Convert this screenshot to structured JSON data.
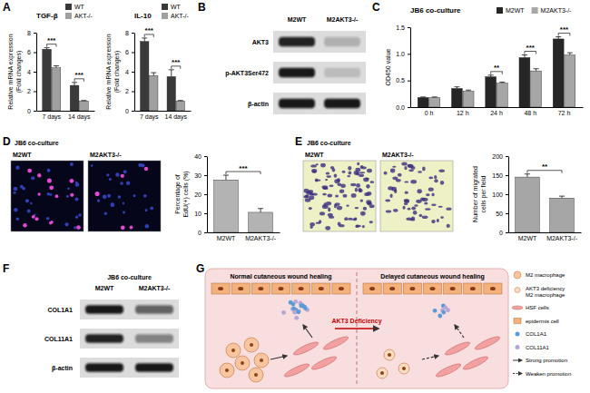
{
  "chart_data": [
    {
      "type": "bar",
      "title": "TGF-β",
      "ylabel": [
        "Relative mRNA expression",
        "(Fold changes)"
      ],
      "categories": [
        "7 days",
        "14 days"
      ],
      "series": [
        {
          "name": "WT",
          "color": "#3a3a3a",
          "values": [
            6.3,
            2.6
          ],
          "errors": [
            0.15,
            0.3
          ]
        },
        {
          "name": "AKT-/-",
          "color": "#a0a0a0",
          "values": [
            4.4,
            1.0
          ],
          "errors": [
            0.2,
            0.05
          ]
        }
      ],
      "ylim": [
        0,
        8
      ],
      "yticks": [
        0,
        2,
        4,
        6,
        8
      ],
      "annotations": [
        "***",
        "***"
      ],
      "legend": "top-right"
    },
    {
      "type": "bar",
      "title": "IL-10",
      "ylabel": [
        "Relative mRNA expression",
        "(Fold changes)"
      ],
      "categories": [
        "7 days",
        "14 days"
      ],
      "series": [
        {
          "name": "WT",
          "color": "#3a3a3a",
          "values": [
            7.1,
            3.5
          ],
          "errors": [
            0.35,
            0.7
          ]
        },
        {
          "name": "AKT-/-",
          "color": "#a0a0a0",
          "values": [
            3.6,
            1.0
          ],
          "errors": [
            0.3,
            0.05
          ]
        }
      ],
      "ylim": [
        0,
        8
      ],
      "yticks": [
        0,
        2,
        4,
        6,
        8
      ],
      "annotations": [
        "***",
        "***"
      ],
      "legend": "top-right"
    },
    {
      "type": "bar",
      "title": "JB6 co-culture",
      "ylabel": "OD450 value",
      "categories": [
        "0 h",
        "12 h",
        "24 h",
        "48 h",
        "72 h"
      ],
      "series": [
        {
          "name": "M2WT",
          "color": "#262626",
          "values": [
            0.18,
            0.35,
            0.57,
            0.93,
            1.28
          ],
          "errors": [
            0.01,
            0.03,
            0.03,
            0.05,
            0.04
          ]
        },
        {
          "name": "M2AKT3-/-",
          "color": "#a6a6a6",
          "values": [
            0.18,
            0.3,
            0.45,
            0.68,
            0.98
          ],
          "errors": [
            0.01,
            0.02,
            0.02,
            0.04,
            0.04
          ]
        }
      ],
      "ylim": [
        0,
        1.5
      ],
      "yticks": [
        {
          "value": 0,
          "label": "0.0"
        },
        0.5,
        {
          "value": 1,
          "label": "1.0"
        },
        1.5
      ],
      "annotations": [
        null,
        null,
        "**",
        "***",
        "***"
      ],
      "legend": "top"
    },
    {
      "type": "bar",
      "ylabel": [
        "Percentage of",
        "EdU(+) cells (%)"
      ],
      "categories": [
        "M2WT",
        "M2AKT3-/-"
      ],
      "values": [
        27.5,
        10.5
      ],
      "errors": [
        2.5,
        2.0
      ],
      "colors": [
        "#b3b3b3",
        "#b3b3b3"
      ],
      "ylim": [
        0,
        40
      ],
      "yticks": [
        0,
        10,
        20,
        30,
        40
      ],
      "annotations": [
        "***"
      ]
    },
    {
      "type": "bar",
      "ylabel": [
        "Number of migrated",
        "cells per field"
      ],
      "categories": [
        "M2WT",
        "M2AKT3-/-"
      ],
      "values": [
        145,
        90
      ],
      "errors": [
        8,
        5
      ],
      "colors": [
        "#a6a6a6",
        "#a6a6a6"
      ],
      "ylim": [
        0,
        200
      ],
      "yticks": [
        0,
        50,
        100,
        150,
        200
      ],
      "annotations": [
        "**"
      ]
    }
  ],
  "figure": {
    "panel_labels": [
      "A",
      "B",
      "C",
      "D",
      "E",
      "F",
      "G"
    ],
    "blots": [
      {
        "columns": [
          "M2WT",
          "M2AKT3-/-"
        ],
        "rows": [
          {
            "label": "AKT3",
            "intensity": [
              0.9,
              0.2
            ]
          },
          {
            "label": "p-AKT3Ser472",
            "intensity": [
              0.95,
              0.15
            ]
          },
          {
            "label": "β-actin",
            "intensity": [
              0.95,
              0.95
            ]
          }
        ]
      },
      {
        "title": "JB6 co-culture",
        "columns": [
          "M2WT",
          "M2AKT3-/-"
        ],
        "rows": [
          {
            "label": "COL1A1",
            "intensity": [
              0.95,
              0.6
            ]
          },
          {
            "label": "COL11A1",
            "intensity": [
              0.9,
              0.45
            ]
          },
          {
            "label": "β-actin",
            "intensity": [
              0.95,
              0.95
            ]
          }
        ]
      }
    ],
    "images": [
      {
        "title": "JB6 co-culture",
        "labels": [
          "M2WT",
          "M2AKT3-/-"
        ]
      },
      {
        "title": "JB6 co-culture",
        "labels": [
          "M2WT",
          "M2AKT3-/-"
        ]
      }
    ],
    "diagram": {
      "left": "Normal cutaneous wound healing",
      "right": "Delayed cutaneous wound healing",
      "arrow": "AKT3 Deficiency",
      "legend": [
        {
          "lines": [
            "M2 macrophage"
          ]
        },
        {
          "lines": [
            "AKT3 deficiency",
            "M2 macrophage"
          ]
        },
        {
          "lines": [
            "HSF cells"
          ]
        },
        {
          "lines": [
            "epidermis cell"
          ]
        },
        {
          "lines": [
            "COL1A1"
          ]
        },
        {
          "lines": [
            "COL11A1"
          ]
        },
        {
          "lines": [
            "Strong promotion"
          ]
        },
        {
          "lines": [
            "Weaken promotion"
          ]
        }
      ]
    }
  }
}
